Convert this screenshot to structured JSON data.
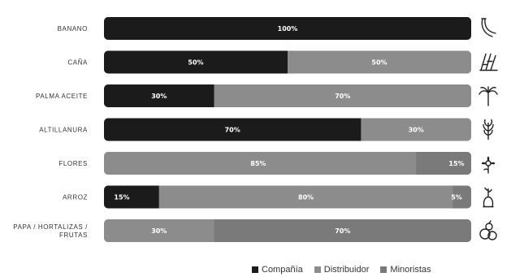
{
  "chart_data": {
    "type": "bar",
    "orientation": "horizontal",
    "stacked": true,
    "percent": true,
    "categories": [
      "BANANO",
      "CAÑA",
      "PALMA ACEITE",
      "ALTILLANURA",
      "FLORES",
      "ARROZ",
      "PAPA / HORTALIZAS / FRUTAS"
    ],
    "series": [
      {
        "name": "Compañía",
        "color": "#1b1b1b",
        "values": [
          100,
          50,
          30,
          70,
          0,
          15,
          0
        ]
      },
      {
        "name": "Distribuidor",
        "color": "#8c8c8c",
        "values": [
          0,
          50,
          70,
          30,
          85,
          80,
          30
        ]
      },
      {
        "name": "Minoristas",
        "color": "#7a7a7a",
        "values": [
          0,
          0,
          0,
          0,
          15,
          5,
          70
        ]
      }
    ],
    "data_labels": [
      [
        "100%",
        "",
        ""
      ],
      [
        "50%",
        "50%",
        ""
      ],
      [
        "30%",
        "70%",
        ""
      ],
      [
        "70%",
        "30%",
        ""
      ],
      [
        "",
        "85%",
        "15%"
      ],
      [
        "15%",
        "80%",
        "5%"
      ],
      [
        "",
        "30%",
        "70%"
      ]
    ],
    "icons": [
      "banana-icon",
      "sugarcane-icon",
      "palm-tree-icon",
      "wheat-icon",
      "flower-icon",
      "rice-icon",
      "vegetables-icon"
    ],
    "legend_position": "bottom",
    "xlim": [
      0,
      100
    ],
    "grid": false
  }
}
